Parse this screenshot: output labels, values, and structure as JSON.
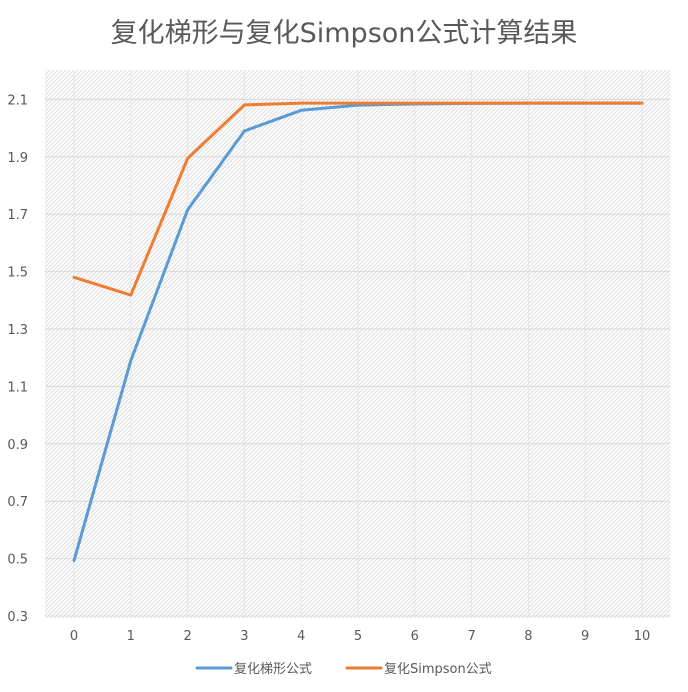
{
  "chart_data": {
    "type": "line",
    "title": "复化梯形与复化Simpson公式计算结果",
    "xlabel": "",
    "ylabel": "",
    "categories": [
      "0",
      "1",
      "2",
      "3",
      "4",
      "5",
      "6",
      "7",
      "8",
      "9",
      "10"
    ],
    "ylim": [
      0.3,
      2.2
    ],
    "yticks": [
      "0.3",
      "0.5",
      "0.7",
      "0.9",
      "1.1",
      "1.3",
      "1.5",
      "1.7",
      "1.9",
      "2.1"
    ],
    "grid": true,
    "legend_position": "bottom",
    "series": [
      {
        "name": "复化梯形公式",
        "color": "#5B9BD5",
        "values": [
          0.493,
          1.19,
          1.715,
          1.99,
          2.062,
          2.08,
          2.084,
          2.086,
          2.087,
          2.087,
          2.087
        ]
      },
      {
        "name": "复化Simpson公式",
        "color": "#ED7D31",
        "values": [
          1.48,
          1.418,
          1.894,
          2.081,
          2.087,
          2.087,
          2.087,
          2.087,
          2.087,
          2.087,
          2.087
        ]
      }
    ]
  }
}
